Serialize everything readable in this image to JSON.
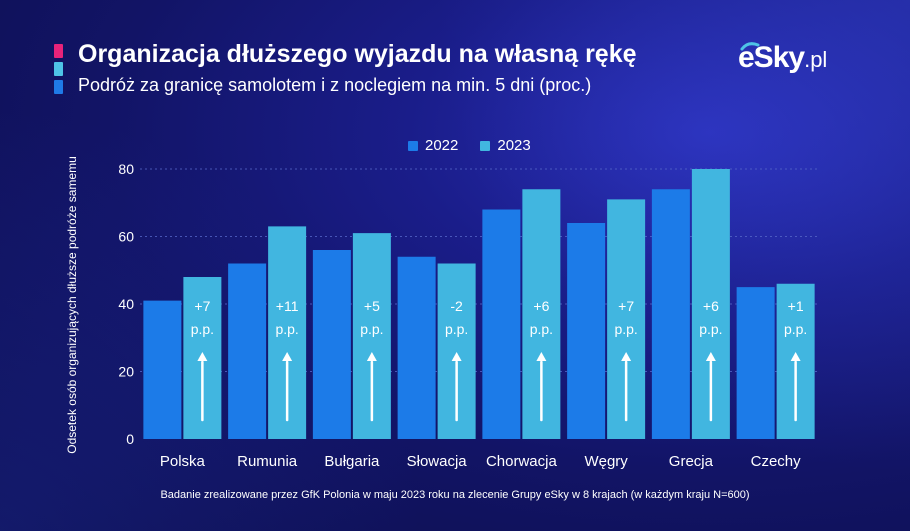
{
  "header": {
    "title": "Organizacja dłuższego wyjazdu na własną rękę",
    "subtitle": "Podróż za granicę samolotem i z noclegiem na min. 5 dni (proc.)"
  },
  "logo": {
    "brand": "eSky",
    "suffix": ".pl"
  },
  "footer": {
    "note": "Badanie zrealizowane przez GfK Polonia w maju 2023 roku na zlecenie Grupy eSky w 8 krajach (w każdym kraju N=600)"
  },
  "colors": {
    "accent_pink": "#e8237a",
    "accent_cyan": "#4ec3e6",
    "accent_blue": "#1f7ae8",
    "series_2022": "#1c7be8",
    "series_2023": "#41b6e0",
    "grid": "#5566c8",
    "tick_text": "#ffffff"
  },
  "chart_data": {
    "type": "bar",
    "title": "Organizacja dłuższego wyjazdu na własną rękę",
    "xlabel": "",
    "ylabel": "Odsetek osób organizujących dłuższe podróże samemu",
    "ylim": [
      0,
      85
    ],
    "yticks": [
      0,
      20,
      40,
      60,
      80
    ],
    "grid": true,
    "legend_position": "top",
    "categories": [
      "Polska",
      "Rumunia",
      "Bułgaria",
      "Słowacja",
      "Chorwacja",
      "Węgry",
      "Grecja",
      "Czechy"
    ],
    "series": [
      {
        "name": "2022",
        "values": [
          41,
          52,
          56,
          54,
          68,
          64,
          74,
          45
        ]
      },
      {
        "name": "2023",
        "values": [
          48,
          63,
          61,
          52,
          74,
          71,
          80,
          46
        ]
      }
    ],
    "annotations": [
      {
        "line1": "+7",
        "line2": "p.p."
      },
      {
        "line1": "+11",
        "line2": "p.p."
      },
      {
        "line1": "+5",
        "line2": "p.p."
      },
      {
        "line1": "-2",
        "line2": "p.p."
      },
      {
        "line1": "+6",
        "line2": "p.p."
      },
      {
        "line1": "+7",
        "line2": "p.p."
      },
      {
        "line1": "+6",
        "line2": "p.p."
      },
      {
        "line1": "+1",
        "line2": "p.p."
      }
    ]
  }
}
